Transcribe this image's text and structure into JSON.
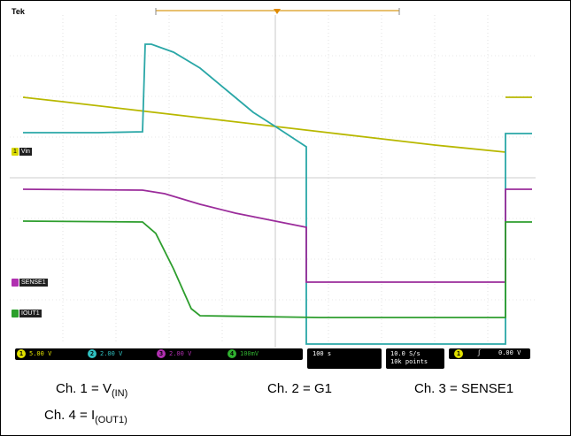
{
  "scope": {
    "brand": "Tek",
    "markers": {
      "ch1": {
        "num": "1",
        "label": "Vin",
        "color": "#d8d800"
      },
      "sense": {
        "label": "SENSE1",
        "color": "#b030b0"
      },
      "iout": {
        "label": "IOUT1",
        "color": "#2ca02c"
      }
    },
    "status": {
      "ch1": {
        "num": "1",
        "value": "5.00 V",
        "color": "#e0e000"
      },
      "ch2": {
        "num": "2",
        "value": "2.00 V",
        "color": "#30c0c0"
      },
      "ch3": {
        "num": "3",
        "value": "2.00 V",
        "color": "#b030b0"
      },
      "ch4": {
        "num": "4",
        "value": "100mV",
        "color": "#30b030"
      },
      "timebase": "100 s",
      "sample_rate": "10.0 S/s",
      "points": "10k points",
      "trigger_ch": "1",
      "trigger_symbol": "ʃ",
      "trigger_level": "0.00 V"
    }
  },
  "captions": {
    "ch1_prefix": "Ch. 1 = V",
    "ch1_sub": "(IN)",
    "ch2": "Ch. 2 = G1",
    "ch3": "Ch. 3 = SENSE1",
    "ch4_prefix": "Ch. 4 = I",
    "ch4_sub": "(OUT1)"
  }
}
